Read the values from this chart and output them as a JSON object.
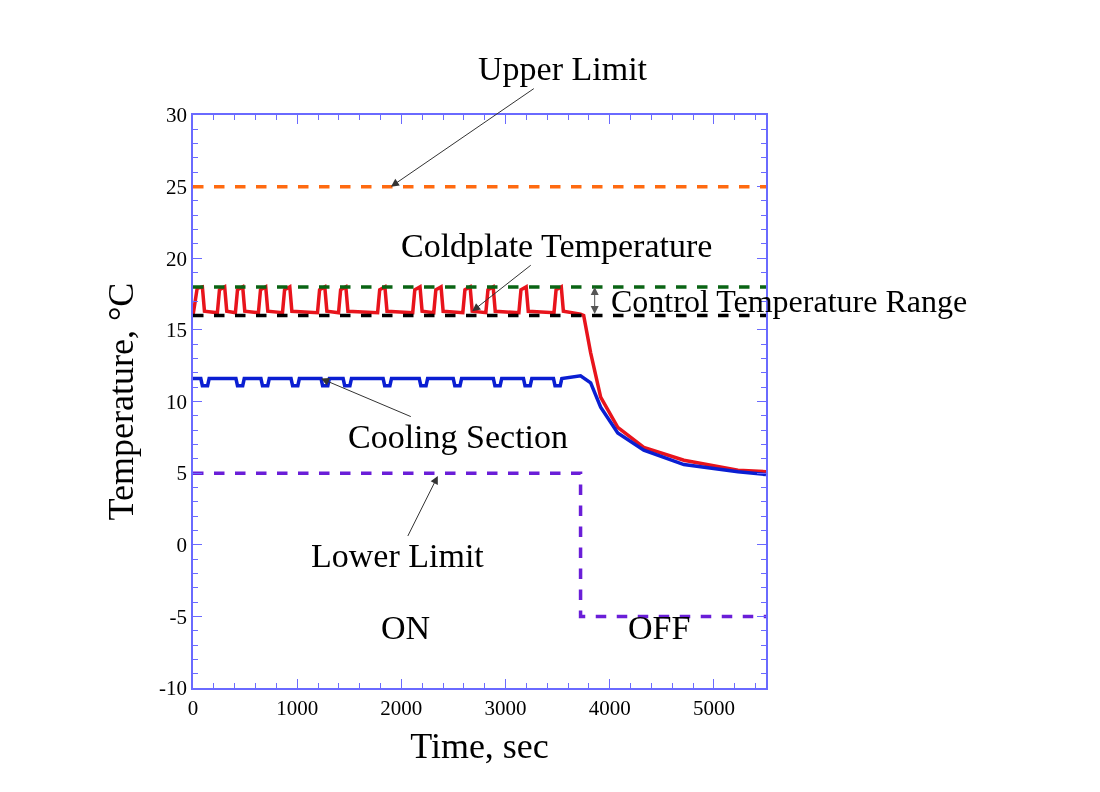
{
  "chart_data": {
    "type": "line",
    "xlabel": "Time, sec",
    "ylabel": "Temperature, °C",
    "xlim": [
      0,
      5500
    ],
    "xticks": [
      0,
      1000,
      2000,
      3000,
      4000,
      5000
    ],
    "ylim": [
      -10,
      30
    ],
    "yticks": [
      -10,
      -5,
      0,
      5,
      10,
      15,
      20,
      25,
      30
    ],
    "line_style": "solid",
    "marker": "none",
    "series": [
      {
        "color": "#e8141c",
        "x": [
          0,
          40,
          90,
          110,
          234,
          254,
          304,
          324,
          407,
          427,
          477,
          497,
          628,
          648,
          698,
          718,
          859,
          879,
          929,
          949,
          1195,
          1215,
          1265,
          1285,
          1397,
          1417,
          1467,
          1487,
          1772,
          1792,
          1842,
          1862,
          2109,
          2129,
          2179,
          2199,
          2311,
          2331,
          2381,
          2401,
          2590,
          2610,
          2660,
          2680,
          2811,
          2831,
          2881,
          2901,
          3128,
          3148,
          3198,
          3218,
          3465,
          3485,
          3535,
          3555,
          3720,
          3750,
          3817,
          3913,
          4077,
          4327,
          4712,
          5231,
          5500
        ],
        "values": [
          16.0,
          17.9,
          18.0,
          16.3,
          16.2,
          17.8,
          18.0,
          16.3,
          16.2,
          17.8,
          18.0,
          16.3,
          16.2,
          17.8,
          18.0,
          16.3,
          16.2,
          17.8,
          18.0,
          16.3,
          16.2,
          17.8,
          18.0,
          16.3,
          16.2,
          17.8,
          18.0,
          16.3,
          16.2,
          17.8,
          18.0,
          16.3,
          16.2,
          17.8,
          18.0,
          16.3,
          16.2,
          17.8,
          18.0,
          16.3,
          16.2,
          17.8,
          18.0,
          16.3,
          16.2,
          17.8,
          18.0,
          16.3,
          16.2,
          17.8,
          18.0,
          16.3,
          16.2,
          17.8,
          18.0,
          16.3,
          16.1,
          16.0,
          13.4,
          10.3,
          8.2,
          6.8,
          5.9,
          5.2,
          5.1
        ]
      },
      {
        "color": "#0a1ed2",
        "x": [
          0,
          75,
          90,
          140,
          155,
          412,
          427,
          477,
          492,
          652,
          667,
          717,
          732,
          941,
          956,
          1006,
          1021,
          1229,
          1244,
          1294,
          1309,
          1441,
          1456,
          1506,
          1521,
          1825,
          1840,
          1890,
          1905,
          2172,
          2187,
          2237,
          2252,
          2498,
          2513,
          2563,
          2578,
          2883,
          2898,
          2948,
          2963,
          3172,
          3187,
          3237,
          3252,
          3460,
          3475,
          3525,
          3540,
          3720,
          3817,
          3913,
          4077,
          4327,
          4712,
          5231,
          5500
        ],
        "values": [
          11.6,
          11.6,
          11.1,
          11.1,
          11.6,
          11.6,
          11.1,
          11.1,
          11.6,
          11.6,
          11.1,
          11.1,
          11.6,
          11.6,
          11.1,
          11.1,
          11.6,
          11.6,
          11.1,
          11.1,
          11.6,
          11.6,
          11.1,
          11.1,
          11.6,
          11.6,
          11.1,
          11.1,
          11.6,
          11.6,
          11.1,
          11.1,
          11.6,
          11.6,
          11.1,
          11.1,
          11.6,
          11.6,
          11.1,
          11.1,
          11.6,
          11.6,
          11.1,
          11.1,
          11.6,
          11.6,
          11.1,
          11.1,
          11.6,
          11.8,
          11.3,
          9.6,
          7.8,
          6.6,
          5.6,
          5.1,
          4.9
        ]
      },
      {
        "type": "step",
        "color": "#6a1ed8",
        "line_style": "dashed",
        "x": [
          0,
          3720,
          5500
        ],
        "values": [
          5,
          -5,
          -5
        ]
      }
    ],
    "ref_lines": [
      {
        "axis": "y",
        "value": 25,
        "color": "#ff6a10",
        "line_style": "dashed"
      },
      {
        "axis": "y",
        "value": 18,
        "color": "#0a6414",
        "line_style": "dashed"
      },
      {
        "axis": "y",
        "value": 16,
        "color": "#000000",
        "line_style": "dashed"
      }
    ],
    "annotations": [
      {
        "text": "Upper Limit",
        "x": 1900,
        "y": 25
      },
      {
        "text": "Coldplate Temperature",
        "x": 2680,
        "y": 16.3
      },
      "Control Temperature Range",
      {
        "text": "Cooling Section",
        "x": 1229,
        "y": 11.6
      },
      {
        "text": "Lower Limit",
        "x": 2350,
        "y": 4.8
      },
      "ON",
      "OFF"
    ]
  }
}
